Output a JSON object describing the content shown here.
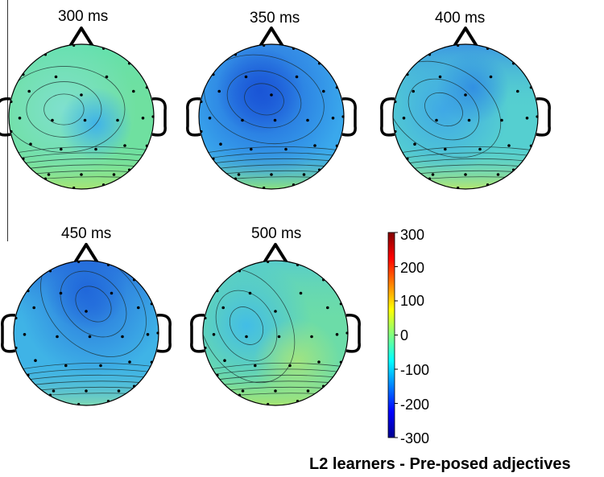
{
  "title": "L2 learners - Pre-posed adjectives",
  "maps": [
    {
      "label": "300 ms",
      "base": "#6fe0a0",
      "spots": [
        {
          "c": "#7fe0cf",
          "r": 0.5
        },
        {
          "c": "#3fb2e8",
          "r": 0.25
        }
      ],
      "north": "#62e0b0",
      "south": "#a6e676"
    },
    {
      "label": "350 ms",
      "base": "#3aa8ec",
      "spots": [
        {
          "c": "#2063dc",
          "r": 0.55
        },
        {
          "c": "#1a55d6",
          "r": 0.3
        }
      ],
      "north": "#3e9ae8",
      "south": "#8ce280"
    },
    {
      "label": "400 ms",
      "base": "#55cfd0",
      "spots": [
        {
          "c": "#3fa8e6",
          "r": 0.45
        },
        {
          "c": "#3290e2",
          "r": 0.25
        }
      ],
      "north": "#3890e4",
      "south": "#b4e870"
    },
    {
      "label": "450 ms",
      "base": "#3fb3e6",
      "spots": [
        {
          "c": "#2a78de",
          "r": 0.5
        },
        {
          "c": "#2067da",
          "r": 0.28
        }
      ],
      "north": "#2460da",
      "south": "#7ed8b4"
    },
    {
      "label": "500 ms",
      "base": "#6cdca8",
      "spots": [
        {
          "c": "#42bde6",
          "r": 0.45
        },
        {
          "c": "#a2e480",
          "r": 0.3
        }
      ],
      "north": "#55cbcf",
      "south": "#a6e472"
    }
  ],
  "colorbar": {
    "ticks": [
      "300",
      "200",
      "100",
      "0",
      "-100",
      "-200",
      "-300"
    ],
    "colors": [
      "#800000",
      "#ff0000",
      "#ff8000",
      "#ffff00",
      "#80ff80",
      "#00ffff",
      "#0080ff",
      "#0000ff",
      "#00008f"
    ]
  }
}
